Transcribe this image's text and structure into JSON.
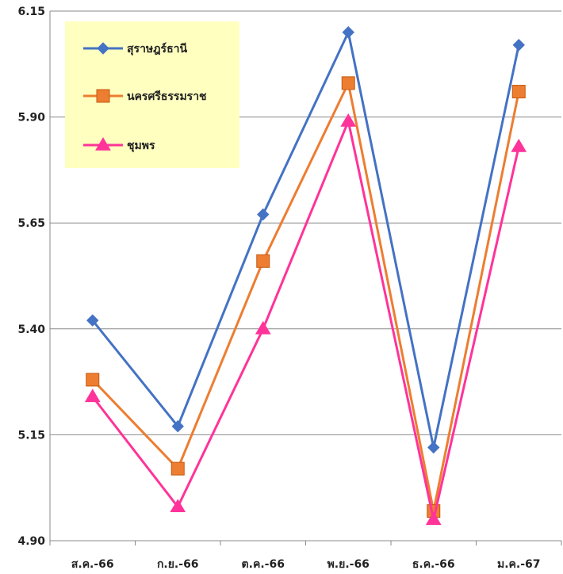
{
  "chart_data": {
    "type": "line",
    "categories": [
      "ส.ค.-66",
      "ก.ย.-66",
      "ต.ค.-66",
      "พ.ย.-66",
      "ธ.ค.-66",
      "ม.ค.-67"
    ],
    "ylim": [
      4.9,
      6.15
    ],
    "yticks": [
      "4.90",
      "5.15",
      "5.40",
      "5.65",
      "5.90",
      "6.15"
    ],
    "grid": "horizontal",
    "legend_position": "top-left",
    "legend_background": "#FFFFC0",
    "series": [
      {
        "name": "สุราษฎร์ธานี",
        "color": "#4472C4",
        "marker": "diamond",
        "values": [
          5.42,
          5.17,
          5.67,
          6.1,
          5.12,
          6.07
        ]
      },
      {
        "name": "นครศรีธรรมราช",
        "color": "#ED7D31",
        "marker": "square",
        "values": [
          5.28,
          5.07,
          5.56,
          5.98,
          4.97,
          5.96
        ]
      },
      {
        "name": "ชุมพร",
        "color": "#FF3399",
        "marker": "triangle",
        "values": [
          5.24,
          4.98,
          5.4,
          5.89,
          4.95,
          5.83
        ]
      }
    ]
  }
}
